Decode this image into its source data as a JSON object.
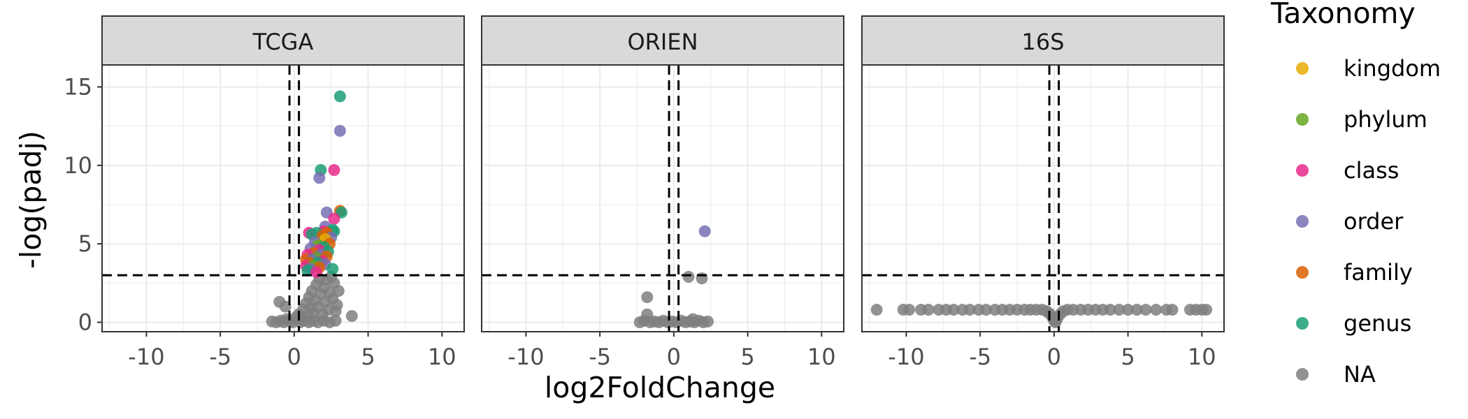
{
  "chart_data": {
    "type": "scatter",
    "xlabel": "log2FoldChange",
    "ylabel": "-log(padj)",
    "xlim": [
      -13,
      11.5
    ],
    "ylim": [
      -0.6,
      16.4
    ],
    "x_ticks": [
      -10,
      -5,
      0,
      5,
      10
    ],
    "y_ticks": [
      0,
      5,
      10,
      15
    ],
    "x_tick_labels": [
      "-10",
      "-5",
      "0",
      "5",
      "10"
    ],
    "y_tick_labels": [
      "0",
      "5",
      "10",
      "15"
    ],
    "grid": true,
    "thresholds": {
      "x": [
        -0.32,
        0.32
      ],
      "y": 3
    },
    "legend": {
      "title": "Taxonomy",
      "position": "right",
      "entries": [
        {
          "label": "kingdom",
          "color": "#E6AB02"
        },
        {
          "label": "phylum",
          "color": "#66A61E"
        },
        {
          "label": "class",
          "color": "#E7298A"
        },
        {
          "label": "order",
          "color": "#7570B3"
        },
        {
          "label": "family",
          "color": "#D95F02"
        },
        {
          "label": "genus",
          "color": "#1B9E77"
        },
        {
          "label": "NA",
          "color": "#7F7F7F"
        }
      ]
    },
    "panels": [
      {
        "title": "TCGA",
        "points": [
          {
            "x": 3.1,
            "y": 14.4,
            "taxonomy": "genus"
          },
          {
            "x": 3.1,
            "y": 12.2,
            "taxonomy": "order"
          },
          {
            "x": 1.8,
            "y": 9.7,
            "taxonomy": "genus"
          },
          {
            "x": 2.7,
            "y": 9.7,
            "taxonomy": "class"
          },
          {
            "x": 1.7,
            "y": 9.2,
            "taxonomy": "order"
          },
          {
            "x": 3.1,
            "y": 7.1,
            "taxonomy": "family"
          },
          {
            "x": 3.2,
            "y": 7.0,
            "taxonomy": "genus"
          },
          {
            "x": 2.2,
            "y": 7.0,
            "taxonomy": "order"
          },
          {
            "x": 2.7,
            "y": 6.6,
            "taxonomy": "class"
          },
          {
            "x": 2.1,
            "y": 6.1,
            "taxonomy": "order"
          },
          {
            "x": 2.6,
            "y": 5.9,
            "taxonomy": "genus"
          },
          {
            "x": 2.7,
            "y": 5.8,
            "taxonomy": "genus"
          },
          {
            "x": 2.0,
            "y": 5.8,
            "taxonomy": "class"
          },
          {
            "x": 2.2,
            "y": 5.7,
            "taxonomy": "family"
          },
          {
            "x": 1.5,
            "y": 5.7,
            "taxonomy": "genus"
          },
          {
            "x": 1.0,
            "y": 5.7,
            "taxonomy": "class"
          },
          {
            "x": 1.2,
            "y": 5.6,
            "taxonomy": "genus"
          },
          {
            "x": 1.9,
            "y": 5.5,
            "taxonomy": "family"
          },
          {
            "x": 2.5,
            "y": 5.4,
            "taxonomy": "order"
          },
          {
            "x": 2.1,
            "y": 5.3,
            "taxonomy": "kingdom"
          },
          {
            "x": 1.4,
            "y": 5.1,
            "taxonomy": "order"
          },
          {
            "x": 2.4,
            "y": 5.0,
            "taxonomy": "family"
          },
          {
            "x": 1.6,
            "y": 4.9,
            "taxonomy": "phylum"
          },
          {
            "x": 2.0,
            "y": 4.8,
            "taxonomy": "genus"
          },
          {
            "x": 1.1,
            "y": 4.7,
            "taxonomy": "order"
          },
          {
            "x": 1.7,
            "y": 4.6,
            "taxonomy": "class"
          },
          {
            "x": 2.3,
            "y": 4.5,
            "taxonomy": "genus"
          },
          {
            "x": 1.3,
            "y": 4.4,
            "taxonomy": "family"
          },
          {
            "x": 0.9,
            "y": 4.3,
            "taxonomy": "class"
          },
          {
            "x": 1.8,
            "y": 4.3,
            "taxonomy": "order"
          },
          {
            "x": 2.2,
            "y": 4.2,
            "taxonomy": "family"
          },
          {
            "x": 1.5,
            "y": 4.1,
            "taxonomy": "phylum"
          },
          {
            "x": 0.8,
            "y": 4.0,
            "taxonomy": "family"
          },
          {
            "x": 1.2,
            "y": 4.0,
            "taxonomy": "order"
          },
          {
            "x": 1.9,
            "y": 3.9,
            "taxonomy": "class"
          },
          {
            "x": 1.0,
            "y": 3.8,
            "taxonomy": "family"
          },
          {
            "x": 1.6,
            "y": 3.8,
            "taxonomy": "genus"
          },
          {
            "x": 2.1,
            "y": 3.7,
            "taxonomy": "order"
          },
          {
            "x": 0.8,
            "y": 3.6,
            "taxonomy": "class"
          },
          {
            "x": 1.3,
            "y": 3.6,
            "taxonomy": "phylum"
          },
          {
            "x": 1.7,
            "y": 3.5,
            "taxonomy": "family"
          },
          {
            "x": 2.6,
            "y": 3.4,
            "taxonomy": "genus"
          },
          {
            "x": 1.1,
            "y": 3.4,
            "taxonomy": "order"
          },
          {
            "x": 0.9,
            "y": 3.3,
            "taxonomy": "genus"
          },
          {
            "x": 1.5,
            "y": 3.2,
            "taxonomy": "class"
          },
          {
            "x": -1.0,
            "y": 1.3,
            "taxonomy": "NA"
          },
          {
            "x": -0.6,
            "y": 1.0,
            "taxonomy": "NA"
          },
          {
            "x": 3.9,
            "y": 0.4,
            "taxonomy": "NA"
          },
          {
            "x": -1.5,
            "y": 0.05,
            "taxonomy": "NA"
          },
          {
            "x": -1.2,
            "y": 0.0,
            "taxonomy": "NA"
          },
          {
            "x": -0.9,
            "y": 0.1,
            "taxonomy": "NA"
          },
          {
            "x": -0.7,
            "y": 0.0,
            "taxonomy": "NA"
          },
          {
            "x": -0.5,
            "y": 0.2,
            "taxonomy": "NA"
          },
          {
            "x": -0.3,
            "y": 0.1,
            "taxonomy": "NA"
          },
          {
            "x": -0.1,
            "y": 0.0,
            "taxonomy": "NA"
          },
          {
            "x": 0.1,
            "y": 0.3,
            "taxonomy": "NA"
          },
          {
            "x": 0.3,
            "y": 0.5,
            "taxonomy": "NA"
          },
          {
            "x": 0.5,
            "y": 0.2,
            "taxonomy": "NA"
          },
          {
            "x": 0.6,
            "y": 0.8,
            "taxonomy": "NA"
          },
          {
            "x": 0.8,
            "y": 1.2,
            "taxonomy": "NA"
          },
          {
            "x": 0.9,
            "y": 0.4,
            "taxonomy": "NA"
          },
          {
            "x": 1.0,
            "y": 1.6,
            "taxonomy": "NA"
          },
          {
            "x": 1.1,
            "y": 0.9,
            "taxonomy": "NA"
          },
          {
            "x": 1.2,
            "y": 2.0,
            "taxonomy": "NA"
          },
          {
            "x": 1.3,
            "y": 0.6,
            "taxonomy": "NA"
          },
          {
            "x": 1.4,
            "y": 1.4,
            "taxonomy": "NA"
          },
          {
            "x": 1.5,
            "y": 2.4,
            "taxonomy": "NA"
          },
          {
            "x": 1.6,
            "y": 1.0,
            "taxonomy": "NA"
          },
          {
            "x": 1.7,
            "y": 2.8,
            "taxonomy": "NA"
          },
          {
            "x": 1.8,
            "y": 1.8,
            "taxonomy": "NA"
          },
          {
            "x": 1.9,
            "y": 0.5,
            "taxonomy": "NA"
          },
          {
            "x": 2.0,
            "y": 2.2,
            "taxonomy": "NA"
          },
          {
            "x": 2.1,
            "y": 1.3,
            "taxonomy": "NA"
          },
          {
            "x": 2.2,
            "y": 2.7,
            "taxonomy": "NA"
          },
          {
            "x": 2.3,
            "y": 0.8,
            "taxonomy": "NA"
          },
          {
            "x": 2.4,
            "y": 1.9,
            "taxonomy": "NA"
          },
          {
            "x": 2.5,
            "y": 2.9,
            "taxonomy": "NA"
          },
          {
            "x": 2.6,
            "y": 1.5,
            "taxonomy": "NA"
          },
          {
            "x": 2.7,
            "y": 2.5,
            "taxonomy": "NA"
          },
          {
            "x": 2.8,
            "y": 0.7,
            "taxonomy": "NA"
          },
          {
            "x": 2.9,
            "y": 1.1,
            "taxonomy": "NA"
          },
          {
            "x": 3.0,
            "y": 2.0,
            "taxonomy": "NA"
          },
          {
            "x": 0.4,
            "y": 0.0,
            "taxonomy": "NA"
          },
          {
            "x": 0.7,
            "y": 0.1,
            "taxonomy": "NA"
          },
          {
            "x": 1.0,
            "y": 0.0,
            "taxonomy": "NA"
          },
          {
            "x": 1.3,
            "y": 0.1,
            "taxonomy": "NA"
          },
          {
            "x": 1.6,
            "y": 0.0,
            "taxonomy": "NA"
          },
          {
            "x": 2.0,
            "y": 0.1,
            "taxonomy": "NA"
          },
          {
            "x": 2.4,
            "y": 0.0,
            "taxonomy": "NA"
          },
          {
            "x": 2.8,
            "y": 0.1,
            "taxonomy": "NA"
          }
        ]
      },
      {
        "title": "ORIEN",
        "points": [
          {
            "x": 2.1,
            "y": 5.8,
            "taxonomy": "order"
          },
          {
            "x": 1.0,
            "y": 2.9,
            "taxonomy": "NA"
          },
          {
            "x": 1.9,
            "y": 2.8,
            "taxonomy": "NA"
          },
          {
            "x": -1.8,
            "y": 1.6,
            "taxonomy": "NA"
          },
          {
            "x": -1.8,
            "y": 0.5,
            "taxonomy": "NA"
          },
          {
            "x": -2.3,
            "y": 0.0,
            "taxonomy": "NA"
          },
          {
            "x": -2.0,
            "y": 0.1,
            "taxonomy": "NA"
          },
          {
            "x": -1.6,
            "y": 0.0,
            "taxonomy": "NA"
          },
          {
            "x": -1.3,
            "y": 0.05,
            "taxonomy": "NA"
          },
          {
            "x": -1.0,
            "y": 0.0,
            "taxonomy": "NA"
          },
          {
            "x": -0.7,
            "y": 0.1,
            "taxonomy": "NA"
          },
          {
            "x": -0.4,
            "y": 0.0,
            "taxonomy": "NA"
          },
          {
            "x": -0.1,
            "y": 0.05,
            "taxonomy": "NA"
          },
          {
            "x": 0.2,
            "y": 0.0,
            "taxonomy": "NA"
          },
          {
            "x": 0.5,
            "y": 0.1,
            "taxonomy": "NA"
          },
          {
            "x": 0.8,
            "y": 0.0,
            "taxonomy": "NA"
          },
          {
            "x": 1.1,
            "y": 0.05,
            "taxonomy": "NA"
          },
          {
            "x": 1.4,
            "y": 0.0,
            "taxonomy": "NA"
          },
          {
            "x": 1.7,
            "y": 0.1,
            "taxonomy": "NA"
          },
          {
            "x": 2.0,
            "y": 0.0,
            "taxonomy": "NA"
          },
          {
            "x": 2.3,
            "y": 0.05,
            "taxonomy": "NA"
          },
          {
            "x": 1.3,
            "y": 0.2,
            "taxonomy": "NA"
          }
        ]
      },
      {
        "title": "16S",
        "points": [
          {
            "x": -12.0,
            "y": 0.8,
            "taxonomy": "NA"
          },
          {
            "x": -10.2,
            "y": 0.8,
            "taxonomy": "NA"
          },
          {
            "x": -9.8,
            "y": 0.8,
            "taxonomy": "NA"
          },
          {
            "x": -9.0,
            "y": 0.8,
            "taxonomy": "NA"
          },
          {
            "x": -8.5,
            "y": 0.8,
            "taxonomy": "NA"
          },
          {
            "x": -7.8,
            "y": 0.8,
            "taxonomy": "NA"
          },
          {
            "x": -7.3,
            "y": 0.8,
            "taxonomy": "NA"
          },
          {
            "x": -6.8,
            "y": 0.8,
            "taxonomy": "NA"
          },
          {
            "x": -6.2,
            "y": 0.8,
            "taxonomy": "NA"
          },
          {
            "x": -5.7,
            "y": 0.8,
            "taxonomy": "NA"
          },
          {
            "x": -5.1,
            "y": 0.8,
            "taxonomy": "NA"
          },
          {
            "x": -4.6,
            "y": 0.8,
            "taxonomy": "NA"
          },
          {
            "x": -4.0,
            "y": 0.8,
            "taxonomy": "NA"
          },
          {
            "x": -3.5,
            "y": 0.8,
            "taxonomy": "NA"
          },
          {
            "x": -3.0,
            "y": 0.8,
            "taxonomy": "NA"
          },
          {
            "x": -2.5,
            "y": 0.8,
            "taxonomy": "NA"
          },
          {
            "x": -2.0,
            "y": 0.8,
            "taxonomy": "NA"
          },
          {
            "x": -1.6,
            "y": 0.8,
            "taxonomy": "NA"
          },
          {
            "x": -1.2,
            "y": 0.8,
            "taxonomy": "NA"
          },
          {
            "x": -0.8,
            "y": 0.8,
            "taxonomy": "NA"
          },
          {
            "x": -0.5,
            "y": 0.7,
            "taxonomy": "NA"
          },
          {
            "x": -0.3,
            "y": 0.55,
            "taxonomy": "NA"
          },
          {
            "x": -0.1,
            "y": 0.3,
            "taxonomy": "NA"
          },
          {
            "x": 0.0,
            "y": 0.1,
            "taxonomy": "NA"
          },
          {
            "x": 0.1,
            "y": 0.0,
            "taxonomy": "NA"
          },
          {
            "x": 0.2,
            "y": 0.2,
            "taxonomy": "NA"
          },
          {
            "x": 0.4,
            "y": 0.5,
            "taxonomy": "NA"
          },
          {
            "x": 0.6,
            "y": 0.7,
            "taxonomy": "NA"
          },
          {
            "x": 0.9,
            "y": 0.8,
            "taxonomy": "NA"
          },
          {
            "x": 1.3,
            "y": 0.8,
            "taxonomy": "NA"
          },
          {
            "x": 1.8,
            "y": 0.8,
            "taxonomy": "NA"
          },
          {
            "x": 2.3,
            "y": 0.8,
            "taxonomy": "NA"
          },
          {
            "x": 2.8,
            "y": 0.8,
            "taxonomy": "NA"
          },
          {
            "x": 3.3,
            "y": 0.8,
            "taxonomy": "NA"
          },
          {
            "x": 3.8,
            "y": 0.8,
            "taxonomy": "NA"
          },
          {
            "x": 4.4,
            "y": 0.8,
            "taxonomy": "NA"
          },
          {
            "x": 5.0,
            "y": 0.8,
            "taxonomy": "NA"
          },
          {
            "x": 5.6,
            "y": 0.8,
            "taxonomy": "NA"
          },
          {
            "x": 6.2,
            "y": 0.8,
            "taxonomy": "NA"
          },
          {
            "x": 6.9,
            "y": 0.8,
            "taxonomy": "NA"
          },
          {
            "x": 7.6,
            "y": 0.8,
            "taxonomy": "NA"
          },
          {
            "x": 8.0,
            "y": 0.8,
            "taxonomy": "NA"
          },
          {
            "x": 9.2,
            "y": 0.8,
            "taxonomy": "NA"
          },
          {
            "x": 9.6,
            "y": 0.8,
            "taxonomy": "NA"
          },
          {
            "x": 10.0,
            "y": 0.8,
            "taxonomy": "NA"
          },
          {
            "x": 10.3,
            "y": 0.8,
            "taxonomy": "NA"
          }
        ]
      }
    ]
  }
}
